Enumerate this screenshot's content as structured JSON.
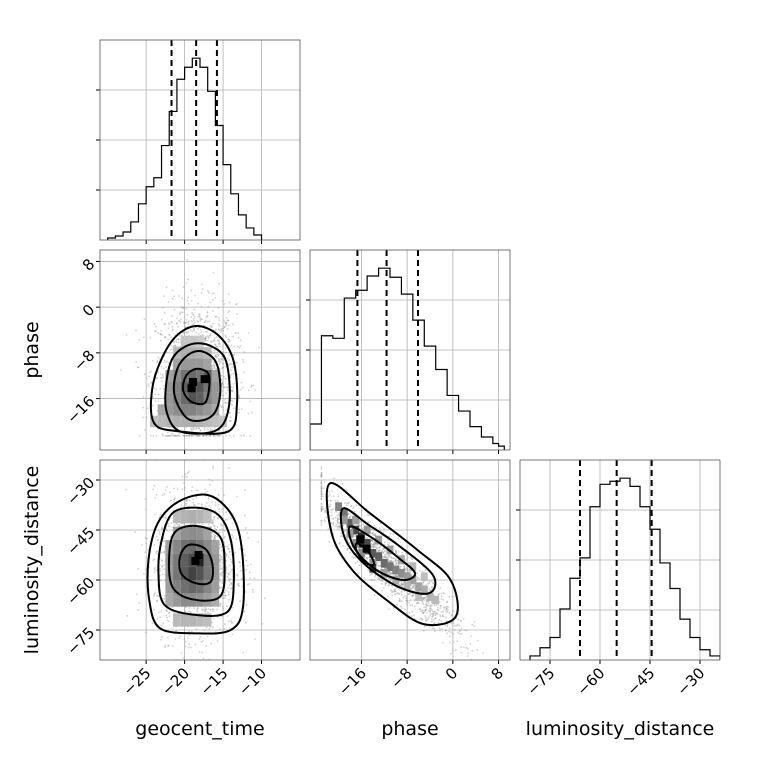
{
  "chart_data": {
    "type": "corner",
    "parameters": [
      "geocent_time",
      "phase",
      "luminosity_distance"
    ],
    "ranges": {
      "geocent_time": [
        -31,
        -5
      ],
      "phase": [
        -25,
        10
      ],
      "luminosity_distance": [
        -84,
        -24
      ]
    },
    "ticks": {
      "geocent_time": [
        -25,
        -20,
        -15,
        -10
      ],
      "phase": [
        -16,
        -8,
        0,
        8
      ],
      "luminosity_distance": [
        -75,
        -60,
        -45,
        -30
      ]
    },
    "quantiles": {
      "geocent_time": [
        -21.7,
        -18.5,
        -15.8
      ],
      "phase": [
        -16.7,
        -11.6,
        -6.1
      ],
      "luminosity_distance": [
        -66,
        -55,
        -44.5
      ]
    },
    "histograms": {
      "geocent_time": {
        "edges": [
          -30,
          -29,
          -28,
          -27,
          -26,
          -25,
          -24,
          -23,
          -22,
          -21,
          -20,
          -19,
          -18,
          -17,
          -16,
          -15,
          -14,
          -13,
          -12,
          -11,
          -10
        ],
        "counts": [
          2,
          4,
          8,
          18,
          36,
          53,
          62,
          94,
          128,
          160,
          172,
          181,
          172,
          148,
          114,
          75,
          46,
          25,
          12,
          5
        ]
      },
      "phase": {
        "edges": [
          -25,
          -24,
          -23,
          -22,
          -21,
          -20,
          -19,
          -18,
          -17,
          -16,
          -15,
          -14,
          -13,
          -12,
          -11,
          -10,
          -9,
          -8,
          -7,
          -6,
          -5,
          -4,
          -3,
          -2,
          -1,
          0,
          1,
          2,
          3,
          4,
          5,
          6,
          7,
          8,
          9
        ],
        "counts": [
          20,
          20,
          88,
          88,
          86,
          86,
          117,
          117,
          123,
          123,
          134,
          134,
          140,
          140,
          133,
          133,
          120,
          120,
          100,
          100,
          80,
          80,
          62,
          62,
          42,
          42,
          30,
          30,
          18,
          18,
          10,
          10,
          5,
          3
        ]
      },
      "luminosity_distance": {
        "edges": [
          -81,
          -78,
          -75,
          -72,
          -69,
          -66,
          -63,
          -60,
          -57,
          -54,
          -51,
          -48,
          -45,
          -42,
          -39,
          -36,
          -33,
          -30,
          -27,
          -24
        ],
        "counts": [
          4,
          12,
          22,
          50,
          80,
          100,
          150,
          172,
          175,
          178,
          170,
          150,
          128,
          95,
          70,
          40,
          22,
          10,
          4
        ]
      }
    },
    "contours": {
      "phase_vs_geocent_time": [
        [
          [
            -19.2,
            -16.5
          ],
          [
            -17.4,
            -16.8
          ],
          [
            -16.8,
            -14
          ],
          [
            -17,
            -11.5
          ],
          [
            -18.5,
            -10.8
          ],
          [
            -19.8,
            -12
          ],
          [
            -20.2,
            -14.5
          ]
        ],
        [
          [
            -19.5,
            -19.6
          ],
          [
            -16.6,
            -19.2
          ],
          [
            -15.4,
            -15.5
          ],
          [
            -15.8,
            -10
          ],
          [
            -17.6,
            -7.8
          ],
          [
            -19.5,
            -8.3
          ],
          [
            -21,
            -11
          ],
          [
            -21.3,
            -15.5
          ]
        ],
        [
          [
            -20.5,
            -21.8
          ],
          [
            -15.8,
            -21.5
          ],
          [
            -14.2,
            -17
          ],
          [
            -14.6,
            -9.5
          ],
          [
            -16.6,
            -6.8
          ],
          [
            -19.2,
            -6.5
          ],
          [
            -21.5,
            -8.8
          ],
          [
            -22.4,
            -13.5
          ],
          [
            -22.3,
            -18.5
          ]
        ],
        [
          [
            -21,
            -21.7
          ],
          [
            -14.4,
            -21.8
          ],
          [
            -13.2,
            -17
          ],
          [
            -13.6,
            -9.6
          ],
          [
            -15.4,
            -5.2
          ],
          [
            -18.2,
            -3.3
          ],
          [
            -20.8,
            -4.7
          ],
          [
            -22.8,
            -8.5
          ],
          [
            -24.2,
            -14.2
          ],
          [
            -24,
            -20.2
          ]
        ]
      ],
      "luminosity_distance_vs_geocent_time": [
        [
          [
            -18.5,
            -61
          ],
          [
            -16.6,
            -60.5
          ],
          [
            -16.4,
            -55
          ],
          [
            -17.4,
            -50.5
          ],
          [
            -19.5,
            -49.5
          ],
          [
            -20.6,
            -53
          ],
          [
            -20.4,
            -58.2
          ]
        ],
        [
          [
            -19,
            -65.8
          ],
          [
            -15.4,
            -65
          ],
          [
            -14.8,
            -56
          ],
          [
            -15.4,
            -47
          ],
          [
            -18.4,
            -43.8
          ],
          [
            -21.2,
            -45.5
          ],
          [
            -22,
            -52.5
          ],
          [
            -21.6,
            -62
          ]
        ],
        [
          [
            -18.5,
            -70.5
          ],
          [
            -14.4,
            -69.5
          ],
          [
            -13.6,
            -60
          ],
          [
            -14,
            -48
          ],
          [
            -15.6,
            -40.5
          ],
          [
            -18.6,
            -38.3
          ],
          [
            -21.6,
            -40
          ],
          [
            -23,
            -48.2
          ],
          [
            -23.4,
            -58
          ],
          [
            -22.6,
            -67.5
          ]
        ],
        [
          [
            -18.5,
            -76
          ],
          [
            -14,
            -75
          ],
          [
            -12.4,
            -68
          ],
          [
            -12.6,
            -50
          ],
          [
            -14,
            -40
          ],
          [
            -17,
            -34.5
          ],
          [
            -20.8,
            -36.5
          ],
          [
            -23.5,
            -43
          ],
          [
            -24.7,
            -54
          ],
          [
            -24.6,
            -66
          ],
          [
            -23.2,
            -74.5
          ]
        ]
      ],
      "luminosity_distance_vs_phase": [
        [
          [
            -16.8,
            -49
          ],
          [
            -14.8,
            -51.5
          ],
          [
            -13.8,
            -55.2
          ],
          [
            -15.2,
            -55
          ],
          [
            -16.8,
            -51.5
          ]
        ],
        [
          [
            -18,
            -44
          ],
          [
            -14,
            -47.5
          ],
          [
            -9.4,
            -53.5
          ],
          [
            -6.6,
            -58
          ],
          [
            -8.8,
            -60
          ],
          [
            -13.4,
            -57
          ],
          [
            -17.2,
            -50.5
          ]
        ],
        [
          [
            -19.2,
            -38.5
          ],
          [
            -14.8,
            -43.4
          ],
          [
            -9.6,
            -49.5
          ],
          [
            -3.5,
            -58.5
          ],
          [
            -4.2,
            -64
          ],
          [
            -9.6,
            -62
          ],
          [
            -15.6,
            -55
          ],
          [
            -19,
            -47
          ]
        ],
        [
          [
            -21.5,
            -31
          ],
          [
            -14.5,
            -40
          ],
          [
            -6.2,
            -51
          ],
          [
            -0.4,
            -60
          ],
          [
            0.5,
            -71
          ],
          [
            -5.2,
            -73.2
          ],
          [
            -11.6,
            -66
          ],
          [
            -17.6,
            -57
          ],
          [
            -21.2,
            -46
          ]
        ]
      ]
    },
    "density_cells": {
      "phase_vs_geocent_time": [
        [
          -24,
          -20,
          0.28
        ],
        [
          -23,
          -20,
          0.3
        ],
        [
          -22,
          -20,
          0.33
        ],
        [
          -21,
          -20,
          0.35
        ],
        [
          -20,
          -20,
          0.35
        ],
        [
          -19,
          -20,
          0.35
        ],
        [
          -18,
          -20,
          0.33
        ],
        [
          -17,
          -20,
          0.3
        ],
        [
          -16,
          -20,
          0.28
        ],
        [
          -15,
          -20,
          0.25
        ],
        [
          -23,
          -18,
          0.38
        ],
        [
          -22,
          -18,
          0.45
        ],
        [
          -21,
          -18,
          0.5
        ],
        [
          -20,
          -18,
          0.55
        ],
        [
          -19,
          -18,
          0.55
        ],
        [
          -18,
          -18,
          0.5
        ],
        [
          -17,
          -18,
          0.45
        ],
        [
          -16,
          -18,
          0.38
        ],
        [
          -22,
          -16,
          0.45
        ],
        [
          -21,
          -16,
          0.55
        ],
        [
          -20,
          -16,
          0.65
        ],
        [
          -19,
          -16,
          0.75
        ],
        [
          -18,
          -16,
          0.7
        ],
        [
          -17,
          -16,
          0.55
        ],
        [
          -16,
          -16,
          0.45
        ],
        [
          -22,
          -14,
          0.45
        ],
        [
          -21,
          -14,
          0.55
        ],
        [
          -20,
          -14,
          0.7
        ],
        [
          -19,
          -14,
          0.85
        ],
        [
          -18,
          -14,
          0.75
        ],
        [
          -17,
          -14,
          0.6
        ],
        [
          -16,
          -14,
          0.45
        ],
        [
          -22,
          -12,
          0.4
        ],
        [
          -21,
          -12,
          0.5
        ],
        [
          -20,
          -12,
          0.6
        ],
        [
          -19,
          -12,
          0.65
        ],
        [
          -18,
          -12,
          0.6
        ],
        [
          -17,
          -12,
          0.7
        ],
        [
          -16,
          -12,
          0.4
        ],
        [
          -21,
          -10,
          0.4
        ],
        [
          -20,
          -10,
          0.45
        ],
        [
          -19,
          -10,
          0.45
        ],
        [
          -18,
          -10,
          0.45
        ],
        [
          -17,
          -10,
          0.4
        ],
        [
          -21,
          -8,
          0.3
        ],
        [
          -20,
          -8,
          0.35
        ],
        [
          -19,
          -8,
          0.35
        ],
        [
          -18,
          -8,
          0.33
        ],
        [
          -17,
          -8,
          0.3
        ],
        [
          -20,
          -6,
          0.25
        ],
        [
          -19,
          -6,
          0.25
        ],
        [
          -18,
          -6,
          0.22
        ]
      ],
      "luminosity_distance_vs_geocent_time": [
        [
          -21,
          -72,
          0.3
        ],
        [
          -20,
          -72,
          0.32
        ],
        [
          -19,
          -72,
          0.32
        ],
        [
          -18,
          -72,
          0.3
        ],
        [
          -17,
          -72,
          0.28
        ],
        [
          -22,
          -66,
          0.38
        ],
        [
          -21,
          -66,
          0.45
        ],
        [
          -20,
          -66,
          0.5
        ],
        [
          -19,
          -66,
          0.5
        ],
        [
          -18,
          -66,
          0.48
        ],
        [
          -17,
          -66,
          0.42
        ],
        [
          -16,
          -66,
          0.36
        ],
        [
          -22,
          -62,
          0.42
        ],
        [
          -21,
          -62,
          0.55
        ],
        [
          -20,
          -62,
          0.62
        ],
        [
          -19,
          -62,
          0.66
        ],
        [
          -18,
          -62,
          0.62
        ],
        [
          -17,
          -62,
          0.52
        ],
        [
          -16,
          -62,
          0.42
        ],
        [
          -22,
          -58,
          0.45
        ],
        [
          -21,
          -58,
          0.6
        ],
        [
          -20,
          -58,
          0.72
        ],
        [
          -19,
          -58,
          0.82
        ],
        [
          -18,
          -58,
          0.75
        ],
        [
          -17,
          -58,
          0.6
        ],
        [
          -16,
          -58,
          0.45
        ],
        [
          -22,
          -54,
          0.45
        ],
        [
          -21,
          -54,
          0.58
        ],
        [
          -20,
          -54,
          0.7
        ],
        [
          -19,
          -54,
          0.78
        ],
        [
          -18,
          -54,
          0.95
        ],
        [
          -17,
          -54,
          0.6
        ],
        [
          -16,
          -54,
          0.45
        ],
        [
          -22,
          -50,
          0.4
        ],
        [
          -21,
          -50,
          0.52
        ],
        [
          -20,
          -50,
          0.62
        ],
        [
          -19,
          -50,
          0.65
        ],
        [
          -18,
          -50,
          0.6
        ],
        [
          -17,
          -50,
          0.5
        ],
        [
          -16,
          -50,
          0.4
        ],
        [
          -21,
          -46,
          0.4
        ],
        [
          -20,
          -46,
          0.48
        ],
        [
          -19,
          -46,
          0.5
        ],
        [
          -18,
          -46,
          0.48
        ],
        [
          -17,
          -46,
          0.4
        ],
        [
          -21,
          -41,
          0.3
        ],
        [
          -20,
          -41,
          0.33
        ],
        [
          -19,
          -41,
          0.35
        ],
        [
          -18,
          -41,
          0.32
        ],
        [
          -17,
          -41,
          0.28
        ]
      ],
      "luminosity_distance_vs_phase": [
        [
          -20,
          -38,
          0.55
        ],
        [
          -19,
          -40,
          0.6
        ],
        [
          -18,
          -43,
          0.7
        ],
        [
          -17,
          -45,
          0.8
        ],
        [
          -16,
          -47,
          0.9
        ],
        [
          -16,
          -49,
          0.95
        ],
        [
          -15,
          -49,
          0.8
        ],
        [
          -15,
          -51,
          0.75
        ],
        [
          -14,
          -52,
          0.72
        ],
        [
          -13,
          -53,
          0.7
        ],
        [
          -12,
          -55,
          0.65
        ],
        [
          -11,
          -56,
          0.6
        ],
        [
          -10,
          -57,
          0.55
        ],
        [
          -9,
          -58,
          0.5
        ],
        [
          -8,
          -59,
          0.45
        ],
        [
          -7,
          -60,
          0.42
        ],
        [
          -6,
          -62,
          0.4
        ],
        [
          -5,
          -63,
          0.36
        ],
        [
          -4,
          -65,
          0.32
        ],
        [
          -3,
          -66,
          0.3
        ],
        [
          -19,
          -42,
          0.45
        ],
        [
          -18,
          -46,
          0.45
        ],
        [
          -17,
          -49,
          0.5
        ],
        [
          -16,
          -52,
          0.5
        ],
        [
          -14,
          -55,
          0.48
        ],
        [
          -12,
          -58,
          0.42
        ],
        [
          -10,
          -60,
          0.38
        ],
        [
          -8,
          -62,
          0.32
        ],
        [
          -6,
          -65,
          0.28
        ],
        [
          -17,
          -42,
          0.42
        ],
        [
          -15,
          -45,
          0.45
        ],
        [
          -13,
          -48,
          0.45
        ],
        [
          -11,
          -51,
          0.42
        ],
        [
          -9,
          -54,
          0.38
        ],
        [
          -7,
          -56,
          0.32
        ],
        [
          -5,
          -59,
          0.28
        ],
        [
          -14,
          -56.5,
          0.85
        ]
      ]
    },
    "markers": {
      "phase_vs_geocent_time": [
        [
          -17.4,
          -12.6
        ],
        [
          -18.9,
          -13.1
        ],
        [
          -19.1,
          -14.2
        ]
      ],
      "luminosity_distance_vs_geocent_time": [
        [
          -18.2,
          -52.5
        ],
        [
          -18.6,
          -54.3
        ]
      ],
      "luminosity_distance_vs_phase": [
        [
          -16.2,
          -47.8
        ],
        [
          -15.1,
          -50.6
        ]
      ]
    }
  }
}
